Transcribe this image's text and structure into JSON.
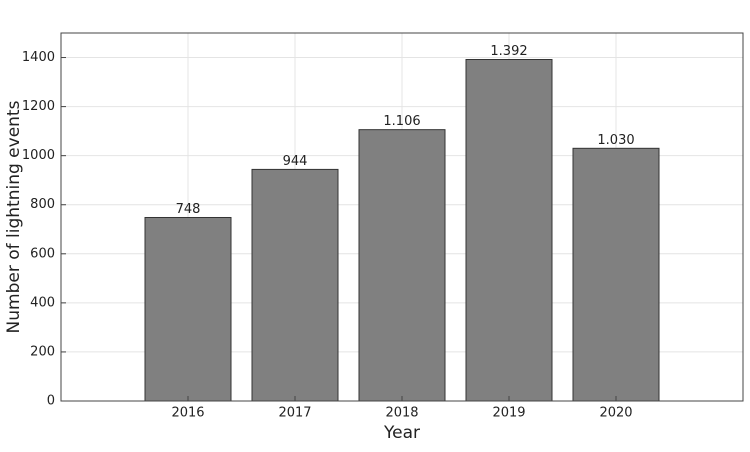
{
  "chart_data": {
    "type": "bar",
    "x_label": "Year",
    "y_label": "Number of lightning events",
    "categories": [
      "2016",
      "2017",
      "2018",
      "2019",
      "2020"
    ],
    "values": [
      748,
      944,
      1106,
      1392,
      1030
    ],
    "value_labels": [
      "748",
      "944",
      "1.106",
      "1.392",
      "1.030"
    ],
    "color": "#808080",
    "ylim": [
      0,
      1500
    ],
    "yticks": [
      0,
      200,
      400,
      600,
      800,
      1000,
      1200,
      1400
    ],
    "grid": true
  }
}
